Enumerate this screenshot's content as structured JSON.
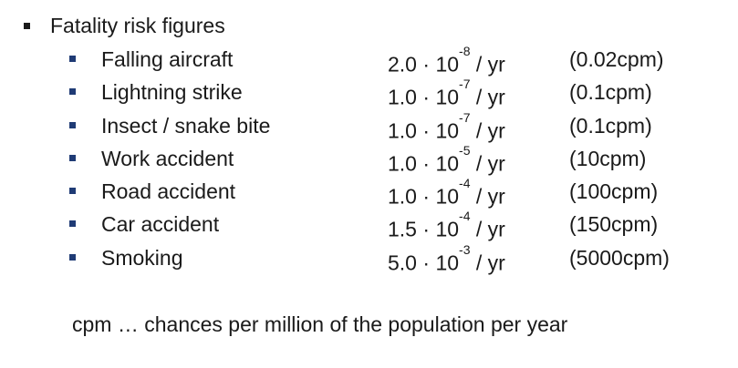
{
  "heading": "Fatality risk figures",
  "rate_separator": "·",
  "rate_base": "10",
  "rate_unit": "/ yr",
  "items": [
    {
      "label": "Falling aircraft",
      "coef": "2.0",
      "exp": "-8",
      "cpm": "(0.02cpm)"
    },
    {
      "label": "Lightning strike",
      "coef": "1.0",
      "exp": "-7",
      "cpm": "(0.1cpm)"
    },
    {
      "label": "Insect / snake bite",
      "coef": "1.0",
      "exp": "-7",
      "cpm": "(0.1cpm)"
    },
    {
      "label": "Work accident",
      "coef": "1.0",
      "exp": "-5",
      "cpm": "(10cpm)"
    },
    {
      "label": "Road accident",
      "coef": "1.0",
      "exp": "-4",
      "cpm": "(100cpm)"
    },
    {
      "label": "Car accident",
      "coef": "1.5",
      "exp": "-4",
      "cpm": "(150cpm)"
    },
    {
      "label": "Smoking",
      "coef": "5.0",
      "exp": "-3",
      "cpm": "(5000cpm)"
    }
  ],
  "footnote": "cpm … chances per million of the population per year",
  "colors": {
    "text": "#1a1a1a",
    "sub_bullet": "#1f3b75"
  }
}
